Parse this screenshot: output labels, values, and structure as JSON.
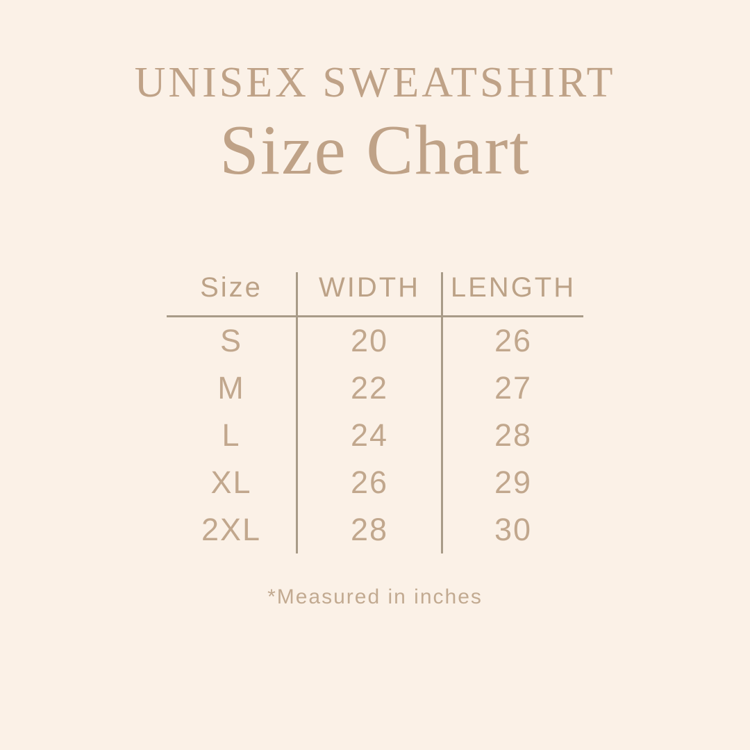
{
  "page": {
    "background_color": "#FBF1E7",
    "title_color": "#BFA287",
    "table_text_color": "#C1A78D",
    "line_color": "#A89B88"
  },
  "header": {
    "subtitle": "UNISEX SWEATSHIRT",
    "title": "Size Chart"
  },
  "chart_data": {
    "type": "table",
    "title": "Unisex Sweatshirt Size Chart",
    "columns": [
      "Size",
      "WIDTH",
      "LENGTH"
    ],
    "rows": [
      [
        "S",
        "20",
        "26"
      ],
      [
        "M",
        "22",
        "27"
      ],
      [
        "L",
        "24",
        "28"
      ],
      [
        "XL",
        "26",
        "29"
      ],
      [
        "2XL",
        "28",
        "30"
      ]
    ],
    "units": "inches"
  },
  "footnote": "*Measured in inches"
}
